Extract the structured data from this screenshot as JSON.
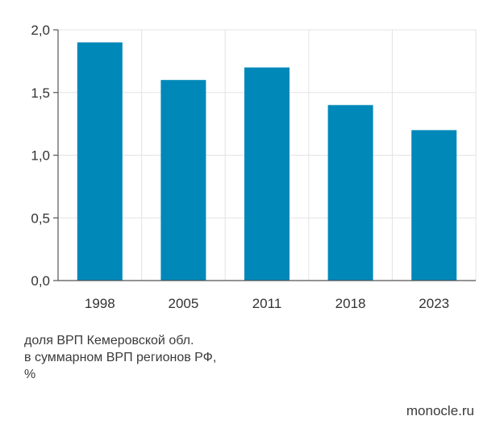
{
  "chart_data": {
    "type": "bar",
    "categories": [
      "1998",
      "2005",
      "2011",
      "2018",
      "2023"
    ],
    "values": [
      1.9,
      1.6,
      1.7,
      1.4,
      1.2
    ],
    "ylim": [
      0,
      2.0
    ],
    "yticks": [
      "0,0",
      "0,5",
      "1,0",
      "1,5",
      "2,0"
    ],
    "ytick_values": [
      0,
      0.5,
      1.0,
      1.5,
      2.0
    ],
    "grid": true,
    "bar_color": "#0088b9"
  },
  "caption": {
    "line1": "доля ВРП Кемеровской обл.",
    "line2": "в суммарном ВРП регионов РФ,",
    "line3": "%"
  },
  "source": "monocle.ru"
}
